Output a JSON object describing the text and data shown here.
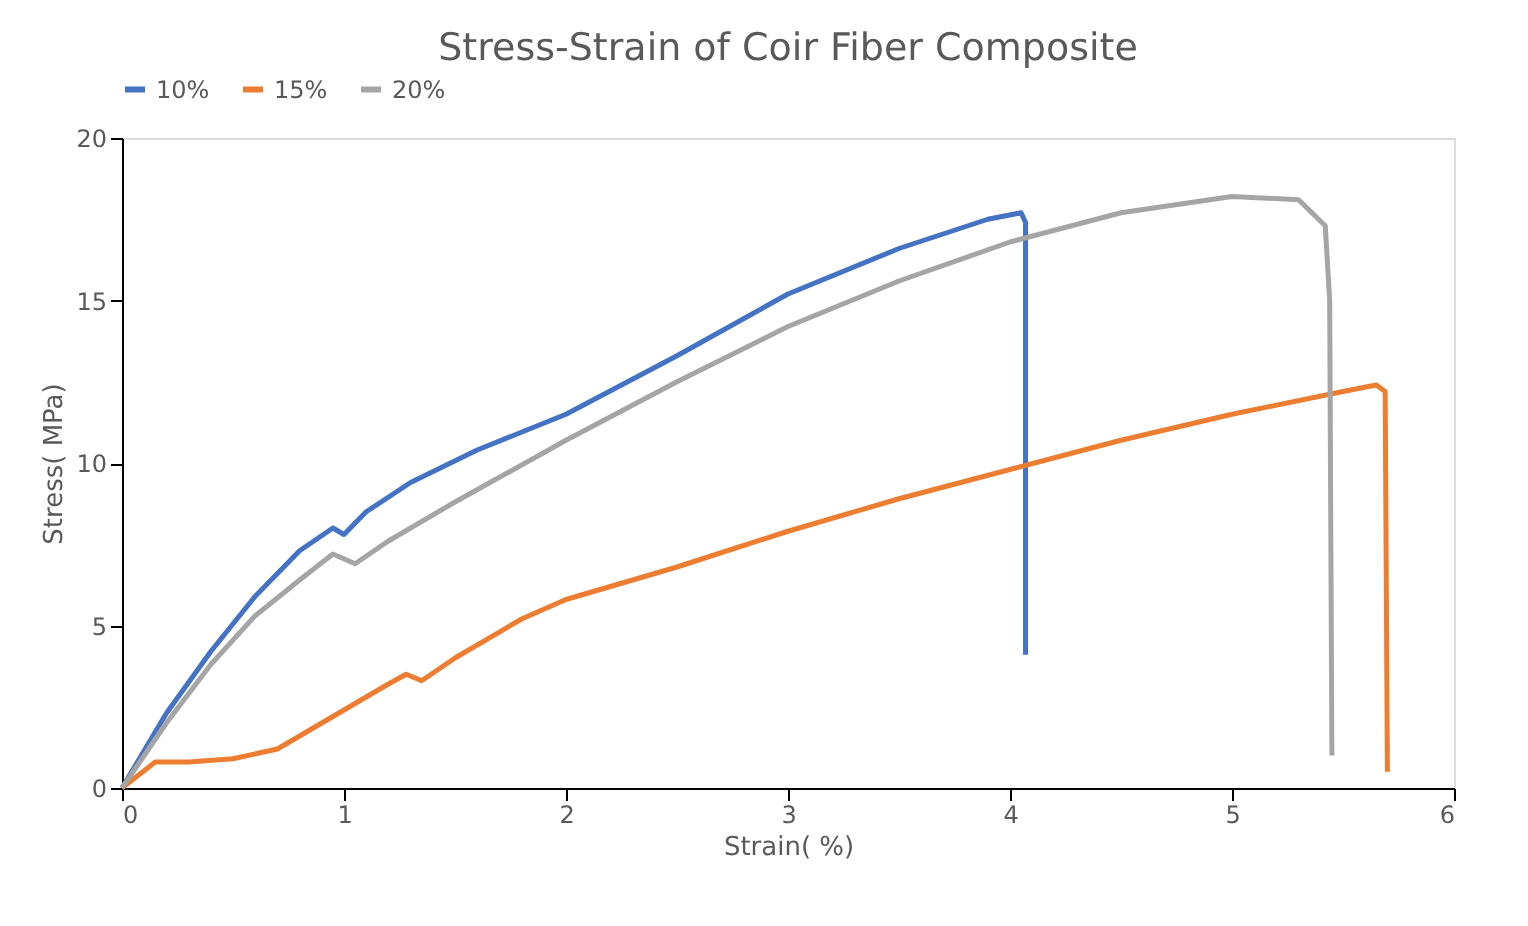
{
  "chart_data": {
    "type": "line",
    "title": "Stress-Strain of Coir Fiber Composite",
    "xlabel": "Strain( %)",
    "ylabel": "Stress( MPa)",
    "xlim": [
      0,
      6
    ],
    "xticks": [
      0,
      1,
      2,
      3,
      4,
      5,
      6
    ],
    "ylim": [
      0,
      20
    ],
    "yticks": [
      0,
      5,
      10,
      15,
      20
    ],
    "grid": false,
    "legend": "top",
    "marker": "none",
    "line_style": "solid",
    "series": [
      {
        "name": "10%",
        "color": "#4472c4",
        "x": [
          0,
          0.2,
          0.4,
          0.6,
          0.8,
          0.95,
          1.0,
          1.1,
          1.3,
          1.6,
          2.0,
          2.5,
          3.0,
          3.5,
          3.9,
          4.05,
          4.07,
          4.07
        ],
        "values": [
          0,
          2.3,
          4.2,
          5.9,
          7.3,
          8.0,
          7.8,
          8.5,
          9.4,
          10.4,
          11.5,
          13.3,
          15.2,
          16.6,
          17.5,
          17.7,
          17.4,
          4.1
        ]
      },
      {
        "name": "15%",
        "color": "#ed7d31",
        "x": [
          0,
          0.15,
          0.3,
          0.5,
          0.7,
          0.8,
          1.0,
          1.2,
          1.28,
          1.35,
          1.5,
          1.8,
          2.0,
          2.5,
          3.0,
          3.5,
          4.0,
          4.5,
          5.0,
          5.5,
          5.65,
          5.69,
          5.7
        ],
        "values": [
          0,
          0.8,
          0.8,
          0.9,
          1.2,
          1.6,
          2.4,
          3.2,
          3.5,
          3.3,
          4.0,
          5.2,
          5.8,
          6.8,
          7.9,
          8.9,
          9.8,
          10.7,
          11.5,
          12.2,
          12.4,
          12.2,
          0.5
        ]
      },
      {
        "name": "20%",
        "color": "#a5a5a5",
        "x": [
          0,
          0.2,
          0.4,
          0.6,
          0.8,
          0.95,
          1.05,
          1.2,
          1.5,
          2.0,
          2.5,
          3.0,
          3.5,
          4.0,
          4.5,
          5.0,
          5.3,
          5.42,
          5.44,
          5.45
        ],
        "values": [
          0,
          2.0,
          3.8,
          5.3,
          6.4,
          7.2,
          6.9,
          7.6,
          8.8,
          10.7,
          12.5,
          14.2,
          15.6,
          16.8,
          17.7,
          18.2,
          18.1,
          17.3,
          15.0,
          1.0
        ]
      }
    ]
  }
}
